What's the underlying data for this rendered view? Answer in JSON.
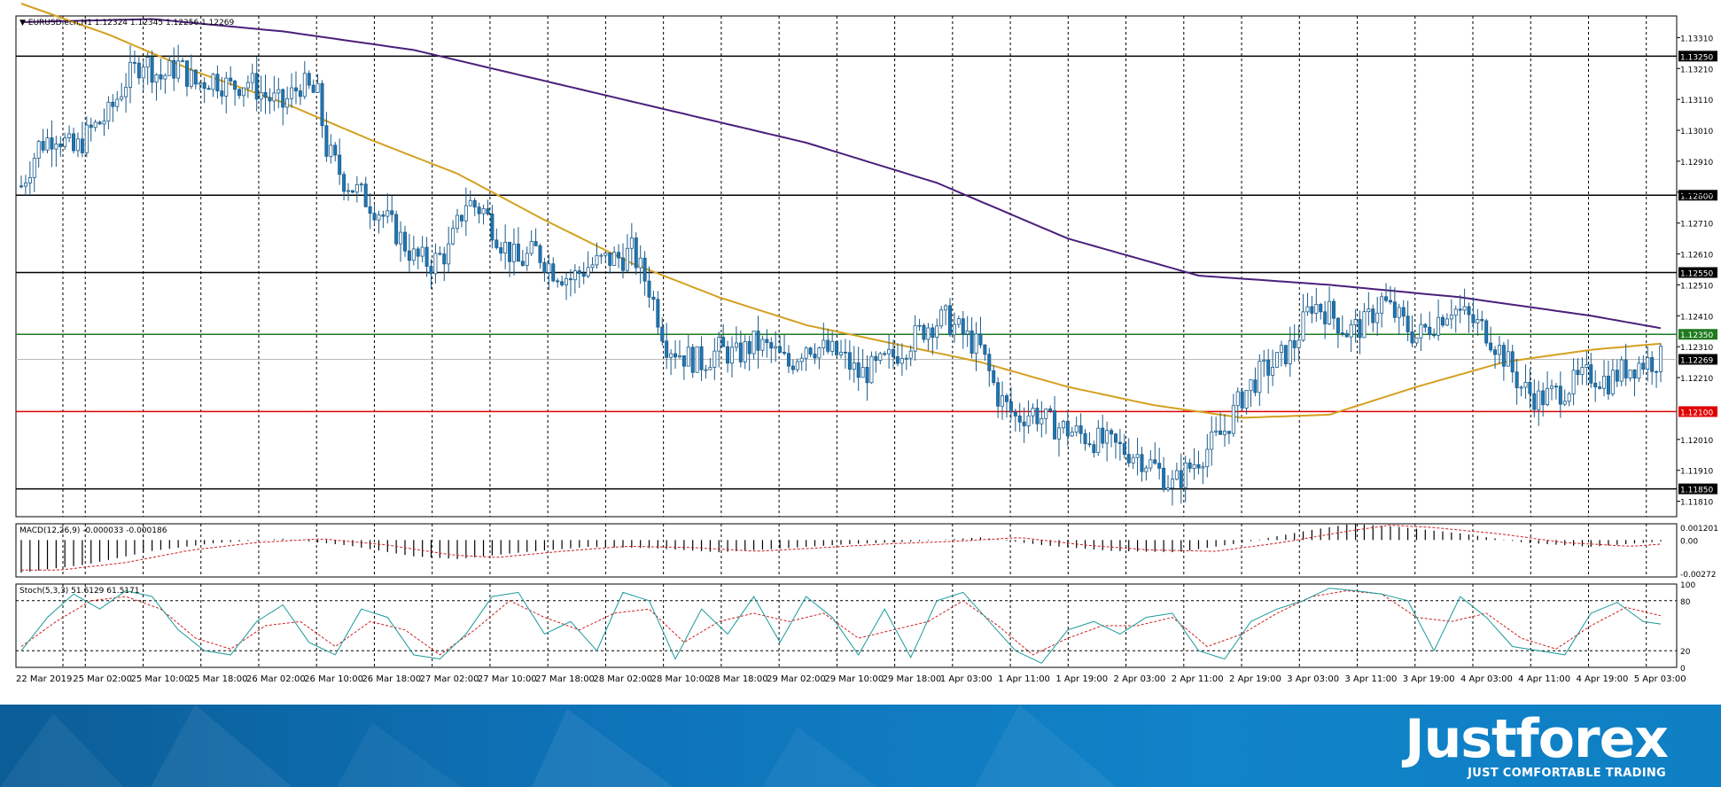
{
  "chart_data": [
    {
      "type": "candlestick",
      "symbol_label": "EURUSD.ecn,H1",
      "header_values": "1.12324 1.12345 1.12256 1.12269",
      "ylim": [
        1.1176,
        1.1338
      ],
      "y_ticks": [
        "1.13310",
        "1.13210",
        "1.13110",
        "1.13010",
        "1.12910",
        "1.12810",
        "1.12710",
        "1.12610",
        "1.12510",
        "1.12410",
        "1.12310",
        "1.12210",
        "1.12010",
        "1.11910",
        "1.11810"
      ],
      "x_ticks": [
        "22 Mar 2019",
        "25 Mar 02:00",
        "25 Mar 10:00",
        "25 Mar 18:00",
        "26 Mar 02:00",
        "26 Mar 10:00",
        "26 Mar 18:00",
        "27 Mar 02:00",
        "27 Mar 10:00",
        "27 Mar 18:00",
        "28 Mar 02:00",
        "28 Mar 10:00",
        "28 Mar 18:00",
        "29 Mar 02:00",
        "29 Mar 10:00",
        "29 Mar 18:00",
        "1 Apr 03:00",
        "1 Apr 11:00",
        "1 Apr 19:00",
        "2 Apr 03:00",
        "2 Apr 11:00",
        "2 Apr 19:00",
        "3 Apr 03:00",
        "3 Apr 11:00",
        "3 Apr 19:00",
        "4 Apr 03:00",
        "4 Apr 11:00",
        "4 Apr 19:00",
        "5 Apr 03:00"
      ],
      "levels": [
        {
          "value": 1.1325,
          "label": "1.13250",
          "color": "#000000"
        },
        {
          "value": 1.128,
          "label": "1.12800",
          "color": "#000000"
        },
        {
          "value": 1.1255,
          "label": "1.12550",
          "color": "#000000"
        },
        {
          "value": 1.1235,
          "label": "1.12350",
          "color": "#1f7a1f"
        },
        {
          "value": 1.121,
          "label": "1.12100",
          "color": "#e00000"
        },
        {
          "value": 1.1185,
          "label": "1.11850",
          "color": "#000000"
        }
      ],
      "current_price": {
        "value": 1.12269,
        "label": "1.12269"
      },
      "close_path": [
        [
          0,
          1.1283
        ],
        [
          4,
          1.1296
        ],
        [
          8,
          1.13
        ],
        [
          12,
          1.1294
        ],
        [
          16,
          1.1301
        ],
        [
          20,
          1.1306
        ],
        [
          24,
          1.1317
        ],
        [
          28,
          1.1324
        ],
        [
          32,
          1.1318
        ],
        [
          36,
          1.1322
        ],
        [
          40,
          1.1316
        ],
        [
          44,
          1.1318
        ],
        [
          48,
          1.1315
        ],
        [
          52,
          1.1317
        ],
        [
          56,
          1.1312
        ],
        [
          60,
          1.1309
        ],
        [
          64,
          1.1316
        ],
        [
          68,
          1.1312
        ],
        [
          70,
          1.1295
        ],
        [
          74,
          1.1285
        ],
        [
          78,
          1.128
        ],
        [
          82,
          1.1275
        ],
        [
          86,
          1.1268
        ],
        [
          90,
          1.126
        ],
        [
          94,
          1.1258
        ],
        [
          98,
          1.1262
        ],
        [
          102,
          1.1278
        ],
        [
          106,
          1.1275
        ],
        [
          110,
          1.1265
        ],
        [
          114,
          1.1258
        ],
        [
          118,
          1.1262
        ],
        [
          122,
          1.1256
        ],
        [
          126,
          1.1253
        ],
        [
          130,
          1.1257
        ],
        [
          134,
          1.1259
        ],
        [
          138,
          1.126
        ],
        [
          140,
          1.1262
        ],
        [
          144,
          1.125
        ],
        [
          148,
          1.1232
        ],
        [
          152,
          1.1228
        ],
        [
          156,
          1.1226
        ],
        [
          160,
          1.123
        ],
        [
          164,
          1.1228
        ],
        [
          168,
          1.1232
        ],
        [
          172,
          1.123
        ],
        [
          176,
          1.1225
        ],
        [
          180,
          1.1232
        ],
        [
          184,
          1.123
        ],
        [
          188,
          1.1228
        ],
        [
          192,
          1.1222
        ],
        [
          196,
          1.1224
        ],
        [
          200,
          1.1228
        ],
        [
          204,
          1.1233
        ],
        [
          208,
          1.1238
        ],
        [
          212,
          1.124
        ],
        [
          216,
          1.1235
        ],
        [
          220,
          1.123
        ],
        [
          224,
          1.1215
        ],
        [
          228,
          1.1208
        ],
        [
          232,
          1.121
        ],
        [
          236,
          1.1206
        ],
        [
          240,
          1.1204
        ],
        [
          244,
          1.1202
        ],
        [
          248,
          1.12
        ],
        [
          252,
          1.1198
        ],
        [
          256,
          1.1196
        ],
        [
          260,
          1.1192
        ],
        [
          264,
          1.1186
        ],
        [
          268,
          1.1192
        ],
        [
          272,
          1.1198
        ],
        [
          276,
          1.1204
        ],
        [
          280,
          1.1215
        ],
        [
          284,
          1.1222
        ],
        [
          288,
          1.1226
        ],
        [
          292,
          1.1232
        ],
        [
          296,
          1.1245
        ],
        [
          300,
          1.1242
        ],
        [
          304,
          1.1236
        ],
        [
          308,
          1.1238
        ],
        [
          312,
          1.1246
        ],
        [
          316,
          1.124
        ],
        [
          320,
          1.1234
        ],
        [
          324,
          1.1239
        ],
        [
          328,
          1.1244
        ],
        [
          332,
          1.124
        ],
        [
          336,
          1.1236
        ],
        [
          340,
          1.1228
        ],
        [
          344,
          1.1218
        ],
        [
          348,
          1.1214
        ],
        [
          352,
          1.1216
        ],
        [
          356,
          1.1219
        ],
        [
          360,
          1.1222
        ],
        [
          364,
          1.122
        ],
        [
          368,
          1.1224
        ],
        [
          372,
          1.1226
        ],
        [
          376,
          1.12269
        ]
      ],
      "ma_fast": [
        [
          0,
          1.1342
        ],
        [
          20,
          1.1332
        ],
        [
          40,
          1.132
        ],
        [
          60,
          1.131
        ],
        [
          80,
          1.1298
        ],
        [
          100,
          1.1287
        ],
        [
          120,
          1.1272
        ],
        [
          140,
          1.1258
        ],
        [
          160,
          1.1247
        ],
        [
          180,
          1.1238
        ],
        [
          200,
          1.1232
        ],
        [
          220,
          1.1226
        ],
        [
          240,
          1.1218
        ],
        [
          260,
          1.1212
        ],
        [
          280,
          1.1208
        ],
        [
          300,
          1.1209
        ],
        [
          320,
          1.1218
        ],
        [
          340,
          1.1226
        ],
        [
          360,
          1.123
        ],
        [
          376,
          1.1232
        ]
      ],
      "ma_slow": [
        [
          0,
          1.1336
        ],
        [
          30,
          1.1337
        ],
        [
          60,
          1.1333
        ],
        [
          90,
          1.1327
        ],
        [
          120,
          1.1317
        ],
        [
          150,
          1.1307
        ],
        [
          180,
          1.1297
        ],
        [
          210,
          1.1284
        ],
        [
          240,
          1.1266
        ],
        [
          270,
          1.1254
        ],
        [
          300,
          1.1251
        ],
        [
          330,
          1.1247
        ],
        [
          360,
          1.1241
        ],
        [
          376,
          1.1237
        ]
      ],
      "ma_fast_color": "#d4a020",
      "ma_slow_color": "#4b1f7a"
    },
    {
      "type": "histogram",
      "label": "MACD(12,26,9) -0.000033 -0.000186",
      "ylim": [
        -0.00272,
        0.001201
      ],
      "y_ticks": [
        "0.001201",
        "0.00",
        "-0.00272"
      ],
      "values_sampled": [
        [
          0,
          -0.0024
        ],
        [
          15,
          -0.0018
        ],
        [
          30,
          -0.0008
        ],
        [
          45,
          -0.0002
        ],
        [
          60,
          0.0001
        ],
        [
          75,
          -0.0004
        ],
        [
          90,
          -0.0012
        ],
        [
          100,
          -0.0014
        ],
        [
          115,
          -0.0009
        ],
        [
          130,
          -0.0005
        ],
        [
          145,
          -0.0006
        ],
        [
          160,
          -0.0009
        ],
        [
          175,
          -0.0006
        ],
        [
          190,
          -0.0003
        ],
        [
          205,
          -0.0001
        ],
        [
          220,
          0.0002
        ],
        [
          235,
          -0.0004
        ],
        [
          250,
          -0.0008
        ],
        [
          265,
          -0.0009
        ],
        [
          280,
          -0.0002
        ],
        [
          295,
          0.0007
        ],
        [
          305,
          0.0012
        ],
        [
          315,
          0.001
        ],
        [
          330,
          0.0005
        ],
        [
          345,
          -0.0002
        ],
        [
          360,
          -0.0005
        ],
        [
          376,
          -0.0001
        ]
      ],
      "signal_color": "#cc2020"
    },
    {
      "type": "line",
      "label": "Stoch(5,3,3) 51.6129 61.5171",
      "ylim": [
        0,
        100
      ],
      "y_ticks": [
        "100",
        "80",
        "20",
        "0"
      ],
      "main_sampled": [
        [
          0,
          20
        ],
        [
          6,
          60
        ],
        [
          12,
          88
        ],
        [
          18,
          70
        ],
        [
          24,
          92
        ],
        [
          30,
          85
        ],
        [
          36,
          45
        ],
        [
          42,
          20
        ],
        [
          48,
          15
        ],
        [
          54,
          55
        ],
        [
          60,
          75
        ],
        [
          66,
          30
        ],
        [
          72,
          15
        ],
        [
          78,
          70
        ],
        [
          84,
          60
        ],
        [
          90,
          15
        ],
        [
          96,
          10
        ],
        [
          102,
          40
        ],
        [
          108,
          85
        ],
        [
          114,
          90
        ],
        [
          120,
          40
        ],
        [
          126,
          55
        ],
        [
          132,
          20
        ],
        [
          138,
          90
        ],
        [
          144,
          80
        ],
        [
          150,
          10
        ],
        [
          156,
          70
        ],
        [
          162,
          40
        ],
        [
          168,
          85
        ],
        [
          174,
          30
        ],
        [
          180,
          85
        ],
        [
          186,
          60
        ],
        [
          192,
          15
        ],
        [
          198,
          70
        ],
        [
          204,
          12
        ],
        [
          210,
          80
        ],
        [
          216,
          90
        ],
        [
          222,
          55
        ],
        [
          228,
          20
        ],
        [
          234,
          5
        ],
        [
          240,
          45
        ],
        [
          246,
          55
        ],
        [
          252,
          40
        ],
        [
          258,
          60
        ],
        [
          264,
          65
        ],
        [
          270,
          20
        ],
        [
          276,
          10
        ],
        [
          282,
          55
        ],
        [
          288,
          70
        ],
        [
          294,
          80
        ],
        [
          300,
          95
        ],
        [
          306,
          92
        ],
        [
          312,
          88
        ],
        [
          318,
          80
        ],
        [
          324,
          20
        ],
        [
          330,
          85
        ],
        [
          336,
          60
        ],
        [
          342,
          25
        ],
        [
          348,
          20
        ],
        [
          354,
          15
        ],
        [
          360,
          65
        ],
        [
          366,
          78
        ],
        [
          372,
          55
        ],
        [
          376,
          52
        ]
      ],
      "signal_sampled": [
        [
          0,
          25
        ],
        [
          8,
          55
        ],
        [
          16,
          80
        ],
        [
          24,
          85
        ],
        [
          32,
          70
        ],
        [
          40,
          35
        ],
        [
          48,
          22
        ],
        [
          56,
          50
        ],
        [
          64,
          55
        ],
        [
          72,
          25
        ],
        [
          80,
          55
        ],
        [
          88,
          45
        ],
        [
          96,
          15
        ],
        [
          104,
          45
        ],
        [
          112,
          80
        ],
        [
          120,
          60
        ],
        [
          128,
          45
        ],
        [
          136,
          65
        ],
        [
          144,
          70
        ],
        [
          152,
          30
        ],
        [
          160,
          55
        ],
        [
          168,
          65
        ],
        [
          176,
          55
        ],
        [
          184,
          65
        ],
        [
          192,
          35
        ],
        [
          200,
          45
        ],
        [
          208,
          55
        ],
        [
          216,
          80
        ],
        [
          224,
          50
        ],
        [
          232,
          15
        ],
        [
          240,
          35
        ],
        [
          248,
          50
        ],
        [
          256,
          50
        ],
        [
          264,
          60
        ],
        [
          272,
          25
        ],
        [
          280,
          40
        ],
        [
          288,
          65
        ],
        [
          296,
          85
        ],
        [
          304,
          92
        ],
        [
          312,
          88
        ],
        [
          320,
          60
        ],
        [
          328,
          55
        ],
        [
          336,
          65
        ],
        [
          344,
          35
        ],
        [
          352,
          22
        ],
        [
          360,
          50
        ],
        [
          368,
          72
        ],
        [
          376,
          62
        ]
      ],
      "main_color": "#1a9a9a",
      "signal_color": "#cc2020"
    }
  ],
  "branding": {
    "logo": "Justforex",
    "tagline": "JUST COMFORTABLE TRADING"
  }
}
